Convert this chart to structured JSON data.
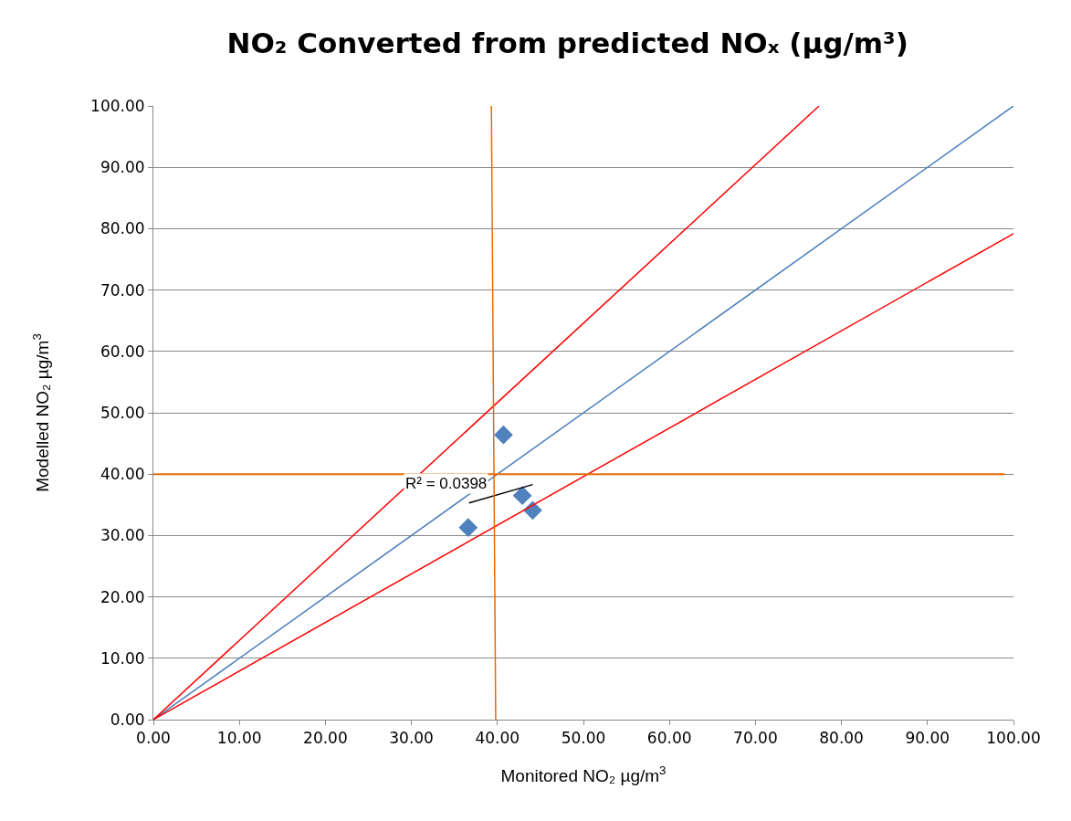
{
  "chart_data": {
    "type": "scatter",
    "title": "NO₂ Converted from predicted NOₓ (µg/m³)",
    "xlabel": "Monitored NO₂ µg/m$^{3}$",
    "ylabel": "Modelled NO₂ µg/m$^{3}$",
    "series": [
      {
        "color": "#4f81bd",
        "marker": "diamond",
        "x": [
          40.7,
          42.9,
          44.1,
          36.6
        ],
        "values": [
          46.4,
          36.5,
          34.1,
          31.3
        ]
      },
      {
        "type": "line",
        "color": "#4a7ebb",
        "x": [
          0,
          100
        ],
        "values": [
          0,
          100
        ]
      },
      {
        "type": "line",
        "color": "#ff0000",
        "x": [
          0,
          77.4
        ],
        "values": [
          0,
          100
        ]
      },
      {
        "type": "line",
        "color": "#ff0000",
        "x": [
          0,
          100
        ],
        "values": [
          0,
          79.2
        ]
      },
      {
        "type": "line",
        "color": "#000000",
        "x": [
          36.7,
          44.1
        ],
        "values": [
          35.3,
          38.3
        ]
      },
      {
        "type": "line",
        "color": "#e46c0a",
        "x": [
          39.8,
          39.3
        ],
        "values": [
          0,
          100
        ]
      }
    ],
    "ref_lines": [
      {
        "axis": "y",
        "value": 40,
        "color": "#e46c0a"
      }
    ],
    "annotations": [
      "R² = 0.0398"
    ],
    "xlim": [
      0,
      100
    ],
    "ylim": [
      0,
      100
    ],
    "xticks": [
      {
        "value": 0,
        "label": "0.00"
      },
      {
        "value": 10,
        "label": "10.00"
      },
      {
        "value": 20,
        "label": "20.00"
      },
      {
        "value": 30,
        "label": "30.00"
      },
      {
        "value": 40,
        "label": "40.00"
      },
      {
        "value": 50,
        "label": "50.00"
      },
      {
        "value": 60,
        "label": "60.00"
      },
      {
        "value": 70,
        "label": "70.00"
      },
      {
        "value": 80,
        "label": "80.00"
      },
      {
        "value": 90,
        "label": "90.00"
      },
      {
        "value": 100,
        "label": "100.00"
      }
    ],
    "yticks": [
      {
        "value": 0,
        "label": "0.00"
      },
      {
        "value": 10,
        "label": "10.00"
      },
      {
        "value": 20,
        "label": "20.00"
      },
      {
        "value": 30,
        "label": "30.00"
      },
      {
        "value": 40,
        "label": "40.00"
      },
      {
        "value": 50,
        "label": "50.00"
      },
      {
        "value": 60,
        "label": "60.00"
      },
      {
        "value": 70,
        "label": "70.00"
      },
      {
        "value": 80,
        "label": "80.00"
      },
      {
        "value": 90,
        "label": "90.00"
      },
      {
        "value": 100,
        "label": "100.00"
      }
    ],
    "grid": "y"
  }
}
